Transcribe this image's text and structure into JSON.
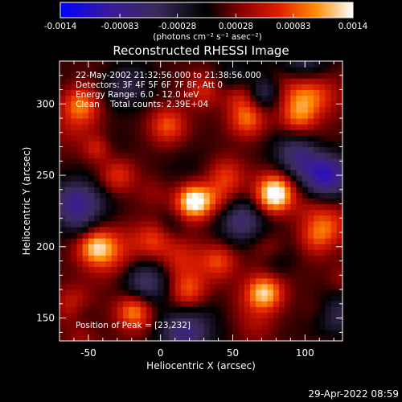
{
  "chart_data": {
    "type": "heatmap",
    "title": "Reconstructed RHESSI Image",
    "xlabel": "Heliocentric X (arcsec)",
    "ylabel": "Heliocentric Y (arcsec)",
    "xlim": [
      -70,
      126
    ],
    "ylim": [
      134,
      330
    ],
    "x_ticks": [
      -50,
      0,
      50,
      100
    ],
    "y_ticks": [
      150,
      200,
      250,
      300
    ],
    "colorbar": {
      "range": [
        -0.0014,
        0.0014
      ],
      "tick_labels": [
        "-0.0014",
        "-0.00083",
        "-0.00028",
        "0.00028",
        "0.00083",
        "0.0014"
      ],
      "unit_label": "(photons cm⁻² s⁻¹ asec⁻²)"
    },
    "annotations": [
      "22-May-2002 21:32:56.000 to 21:38:56.000",
      "Detectors: 3F 4F 5F 6F 7F 8F, Att 0",
      "Energy Range: 6.0 - 12.0 keV",
      "Clean    Total counts: 2.39E+04"
    ],
    "peak_label": "Position of Peak = [23,232]",
    "peak": [
      23,
      232
    ],
    "sources": [
      {
        "x": 23,
        "y": 232,
        "value": 0.0014
      },
      {
        "x": 80,
        "y": 238,
        "value": 0.0011
      },
      {
        "x": 72,
        "y": 168,
        "value": 0.0011
      },
      {
        "x": -18,
        "y": 155,
        "value": 0.00095
      },
      {
        "x": -45,
        "y": 200,
        "value": 0.0009
      },
      {
        "x": 60,
        "y": 290,
        "value": 0.0008
      },
      {
        "x": -55,
        "y": 300,
        "value": 0.00075
      },
      {
        "x": 5,
        "y": 285,
        "value": 0.0007
      },
      {
        "x": 40,
        "y": 190,
        "value": 0.00065
      },
      {
        "x": -30,
        "y": 250,
        "value": 0.0006
      },
      {
        "x": 105,
        "y": 205,
        "value": 0.0005
      },
      {
        "x": 95,
        "y": 290,
        "value": 0.00055
      },
      {
        "x": -5,
        "y": 205,
        "value": 0.00055
      },
      {
        "x": 45,
        "y": 250,
        "value": 0.00055
      },
      {
        "x": 20,
        "y": 170,
        "value": 0.0005
      },
      {
        "x": -60,
        "y": 160,
        "value": 0.00045
      },
      {
        "x": 110,
        "y": 155,
        "value": 0.00045
      },
      {
        "x": 30,
        "y": 310,
        "value": 0.0005
      }
    ],
    "minima": [
      {
        "x": 115,
        "y": 250,
        "value": -0.0012
      },
      {
        "x": 118,
        "y": 150,
        "value": -0.0009
      },
      {
        "x": -10,
        "y": 175,
        "value": -0.0007
      },
      {
        "x": 95,
        "y": 265,
        "value": -0.0008
      },
      {
        "x": -60,
        "y": 230,
        "value": -0.0008
      },
      {
        "x": 15,
        "y": 140,
        "value": -0.0007
      },
      {
        "x": 55,
        "y": 220,
        "value": -0.0006
      },
      {
        "x": -25,
        "y": 315,
        "value": -0.0006
      },
      {
        "x": 100,
        "y": 325,
        "value": -0.0007
      }
    ]
  },
  "footer": {
    "timestamp": "29-Apr-2022 08:59"
  }
}
